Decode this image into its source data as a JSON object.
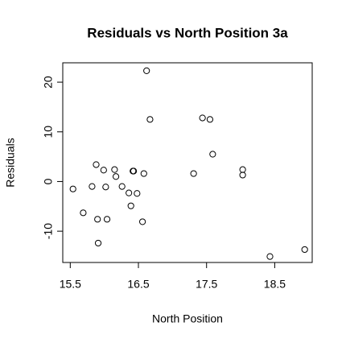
{
  "chart_data": {
    "type": "scatter",
    "title": "Residuals vs North Position 3a",
    "x_label": "North Position",
    "y_label": "Residuals",
    "color": "#000000",
    "x": [
      15.54,
      15.69,
      15.82,
      15.88,
      15.9,
      15.91,
      15.99,
      16.02,
      16.04,
      16.15,
      16.17,
      16.26,
      16.36,
      16.39,
      16.42,
      16.43,
      16.48,
      16.56,
      16.58,
      16.62,
      16.67,
      17.31,
      17.44,
      17.55,
      17.59,
      18.03,
      18.03,
      18.43,
      18.94
    ],
    "values": [
      -1.5,
      -6.3,
      -1.0,
      3.4,
      -7.6,
      -12.4,
      2.3,
      -1.1,
      -7.6,
      2.4,
      1.0,
      -1.0,
      -2.3,
      -4.9,
      2.1,
      2.1,
      -2.4,
      -8.1,
      1.6,
      22.3,
      12.5,
      1.6,
      12.8,
      12.5,
      5.5,
      2.4,
      1.3,
      -15.1,
      -13.7
    ],
    "xlim": [
      15.39,
      19.05
    ],
    "ylim": [
      -16.3,
      23.9
    ],
    "xticks": [
      15.5,
      16.5,
      17.5,
      18.5
    ],
    "yticks": [
      -10,
      0,
      10,
      20
    ]
  }
}
